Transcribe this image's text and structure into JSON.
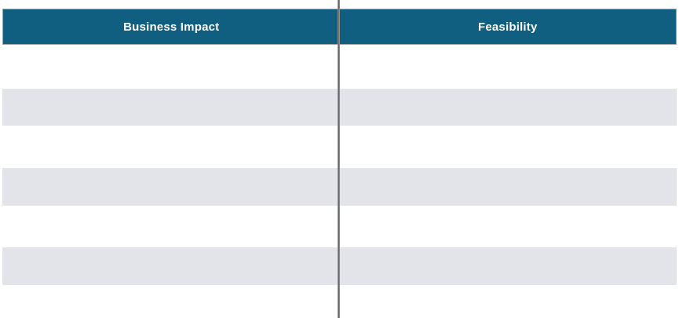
{
  "table": {
    "columns": [
      {
        "label": "Business Impact"
      },
      {
        "label": "Feasibility"
      }
    ],
    "rows": [
      {
        "cells": [
          "",
          ""
        ],
        "shaded": false
      },
      {
        "cells": [
          "",
          ""
        ],
        "shaded": true
      },
      {
        "cells": [
          "",
          ""
        ],
        "shaded": false
      },
      {
        "cells": [
          "",
          ""
        ],
        "shaded": true
      },
      {
        "cells": [
          "",
          ""
        ],
        "shaded": false
      },
      {
        "cells": [
          "",
          ""
        ],
        "shaded": true
      }
    ]
  },
  "colors": {
    "header_bg": "#105F80",
    "header_text": "#FFFFFF",
    "header_border": "#9CA3AA",
    "shaded_row_bg": "#E2E4E9",
    "divider": "#67696D"
  }
}
